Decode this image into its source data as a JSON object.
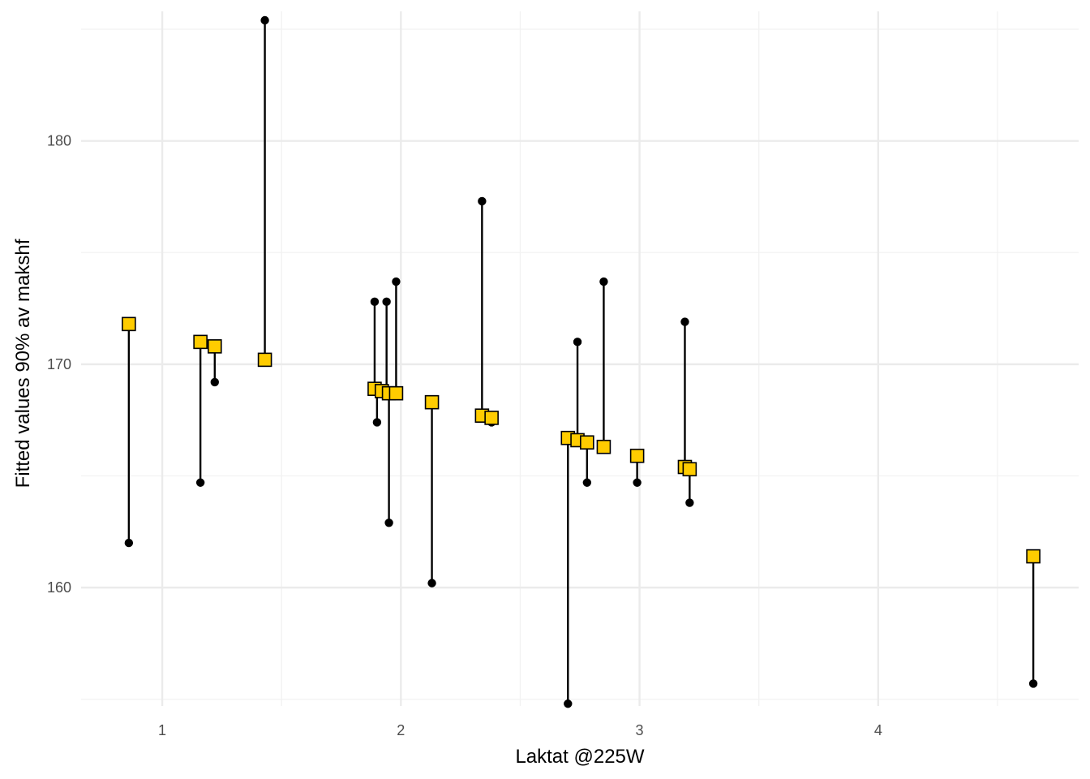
{
  "chart_data": {
    "type": "scatter",
    "xlabel": "Laktat @225W",
    "ylabel": "Fitted values 90% av makshf",
    "xlim": [
      0.66,
      4.84
    ],
    "ylim": [
      154.7,
      185.8
    ],
    "x_ticks": [
      1,
      2,
      3,
      4
    ],
    "y_ticks": [
      160,
      170,
      180
    ],
    "grid": true,
    "legend": "none",
    "colors": {
      "fitted_fill": "#FFCC00",
      "fitted_stroke": "#000000",
      "observed": "#000000",
      "segment": "#000000",
      "grid_major": "#EBEBEB",
      "grid_minor": "#F2F2F2"
    },
    "series": [
      {
        "kind": "fitted",
        "marker": "square",
        "points": [
          {
            "x": 0.86,
            "y": 171.8
          },
          {
            "x": 1.16,
            "y": 171.0
          },
          {
            "x": 1.22,
            "y": 170.8
          },
          {
            "x": 1.43,
            "y": 170.2
          },
          {
            "x": 1.89,
            "y": 168.9
          },
          {
            "x": 1.92,
            "y": 168.8
          },
          {
            "x": 1.95,
            "y": 168.7
          },
          {
            "x": 1.98,
            "y": 168.7
          },
          {
            "x": 2.13,
            "y": 168.3
          },
          {
            "x": 2.34,
            "y": 167.7
          },
          {
            "x": 2.38,
            "y": 167.6
          },
          {
            "x": 2.7,
            "y": 166.7
          },
          {
            "x": 2.74,
            "y": 166.6
          },
          {
            "x": 2.78,
            "y": 166.5
          },
          {
            "x": 2.85,
            "y": 166.3
          },
          {
            "x": 2.99,
            "y": 165.9
          },
          {
            "x": 3.19,
            "y": 165.4
          },
          {
            "x": 3.21,
            "y": 165.3
          },
          {
            "x": 4.65,
            "y": 161.4
          }
        ]
      },
      {
        "kind": "observed",
        "marker": "circle",
        "points": [
          {
            "x": 0.86,
            "y": 162.0
          },
          {
            "x": 1.16,
            "y": 164.7
          },
          {
            "x": 1.22,
            "y": 169.2
          },
          {
            "x": 1.43,
            "y": 185.4
          },
          {
            "x": 1.89,
            "y": 172.8
          },
          {
            "x": 1.9,
            "y": 167.4
          },
          {
            "x": 1.94,
            "y": 172.8
          },
          {
            "x": 1.95,
            "y": 162.9
          },
          {
            "x": 1.98,
            "y": 173.7
          },
          {
            "x": 2.13,
            "y": 160.2
          },
          {
            "x": 2.34,
            "y": 177.3
          },
          {
            "x": 2.38,
            "y": 167.4
          },
          {
            "x": 2.7,
            "y": 154.8
          },
          {
            "x": 2.74,
            "y": 171.0
          },
          {
            "x": 2.78,
            "y": 164.7
          },
          {
            "x": 2.85,
            "y": 173.7
          },
          {
            "x": 2.99,
            "y": 164.7
          },
          {
            "x": 3.19,
            "y": 171.9
          },
          {
            "x": 3.21,
            "y": 163.8
          },
          {
            "x": 4.65,
            "y": 155.7
          }
        ]
      }
    ]
  }
}
